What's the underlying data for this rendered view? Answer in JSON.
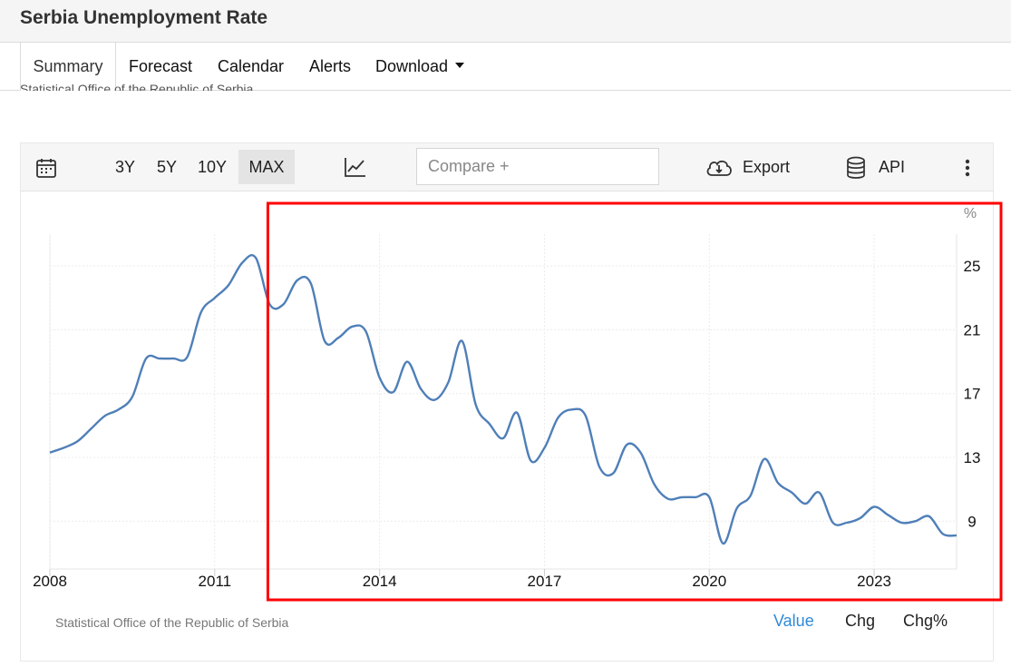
{
  "header": {
    "title": "Serbia Unemployment Rate"
  },
  "tabs": [
    {
      "label": "Summary"
    },
    {
      "label": "Forecast"
    },
    {
      "label": "Calendar"
    },
    {
      "label": "Alerts"
    },
    {
      "label": "Download"
    }
  ],
  "source_clipped": "Statistical Office of the Republic of Serbia",
  "toolbar": {
    "ranges": [
      "3Y",
      "5Y",
      "10Y",
      "MAX"
    ],
    "active_range": "MAX",
    "compare_placeholder": "Compare +",
    "export_label": "Export",
    "api_label": "API"
  },
  "footer": {
    "source": "Statistical Office of the Republic of Serbia",
    "tabs": [
      "Value",
      "Chg",
      "Chg%"
    ],
    "active_tab": "Value"
  },
  "colors": {
    "line": "#4f7fb8",
    "highlight_box": "#ff0000",
    "active_footer_tab": "#2f8ad8"
  },
  "chart_data": {
    "type": "line",
    "title": "",
    "xlabel": "",
    "ylabel": "",
    "unit_label": "%",
    "y_axis_side": "right",
    "grid": true,
    "x_ticks": [
      "2008",
      "2011",
      "2014",
      "2017",
      "2020",
      "2023"
    ],
    "y_ticks": [
      25,
      21,
      17,
      13,
      9
    ],
    "xlim": [
      2008.0,
      2024.5
    ],
    "ylim": [
      6.0,
      27.0
    ],
    "highlight_range": [
      2012.0,
      2024.5
    ],
    "series": [
      {
        "values_x": [
          2008.0,
          2008.25,
          2008.5,
          2008.75,
          2009.0,
          2009.25,
          2009.5,
          2009.75,
          2010.0,
          2010.25,
          2010.5,
          2010.75,
          2011.0,
          2011.25,
          2011.5,
          2011.75,
          2012.0,
          2012.25,
          2012.5,
          2012.75,
          2013.0,
          2013.25,
          2013.5,
          2013.75,
          2014.0,
          2014.25,
          2014.5,
          2014.75,
          2015.0,
          2015.25,
          2015.5,
          2015.75,
          2016.0,
          2016.25,
          2016.5,
          2016.75,
          2017.0,
          2017.25,
          2017.5,
          2017.75,
          2018.0,
          2018.25,
          2018.5,
          2018.75,
          2019.0,
          2019.25,
          2019.5,
          2019.75,
          2020.0,
          2020.25,
          2020.5,
          2020.75,
          2021.0,
          2021.25,
          2021.5,
          2021.75,
          2022.0,
          2022.25,
          2022.5,
          2022.75,
          2023.0,
          2023.25,
          2023.5,
          2023.75,
          2024.0,
          2024.25,
          2024.5
        ],
        "values": [
          13.3,
          13.6,
          14.0,
          14.8,
          15.6,
          16.0,
          16.8,
          19.2,
          19.2,
          19.2,
          19.3,
          22.1,
          23.0,
          23.8,
          25.2,
          25.5,
          22.6,
          22.6,
          24.1,
          23.9,
          20.3,
          20.5,
          21.2,
          20.9,
          18.0,
          17.1,
          19.0,
          17.3,
          16.6,
          17.7,
          20.3,
          16.3,
          15.1,
          14.2,
          15.8,
          12.8,
          13.6,
          15.5,
          16.0,
          15.6,
          12.4,
          12.0,
          13.8,
          13.3,
          11.3,
          10.4,
          10.5,
          10.5,
          10.5,
          7.6,
          9.8,
          10.6,
          12.9,
          11.4,
          10.8,
          10.1,
          10.8,
          8.9,
          8.9,
          9.2,
          9.9,
          9.4,
          8.9,
          9.0,
          9.3,
          8.2,
          8.1
        ]
      }
    ]
  }
}
